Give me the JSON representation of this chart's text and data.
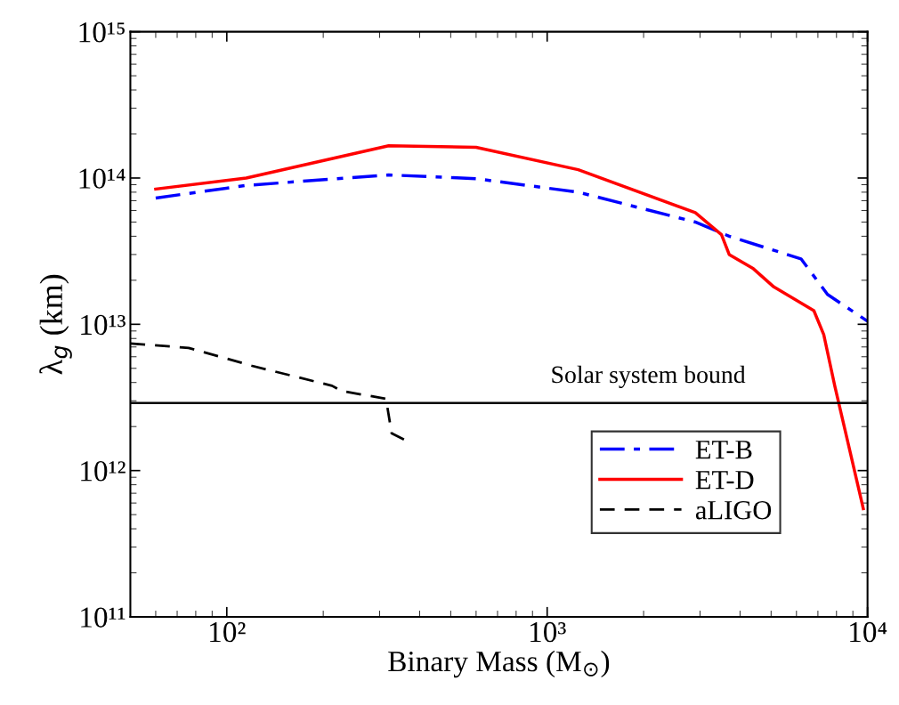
{
  "chart_data": {
    "type": "line",
    "xlabel": "Binary Mass (M$_{⊙}$)",
    "ylabel": "λ$_{g}$ (km)",
    "log": "xy",
    "grid": false,
    "legend": "bottom right",
    "xlim": [
      50,
      10000
    ],
    "xticks": [
      {
        "value": 100,
        "label": "10²"
      },
      {
        "value": 1000,
        "label": "10³"
      },
      {
        "value": 10000,
        "label": "10⁴"
      }
    ],
    "ylim": [
      100000000000.0,
      1000000000000000.0
    ],
    "yticks": [
      {
        "value": 100000000000.0,
        "label": "10¹¹"
      },
      {
        "value": 1000000000000.0,
        "label": "10¹²"
      },
      {
        "value": 10000000000000.0,
        "label": "10¹³"
      },
      {
        "value": 100000000000000.0,
        "label": "10¹⁴"
      },
      {
        "value": 1000000000000000.0,
        "label": "10¹⁵"
      }
    ],
    "series": [
      {
        "name": "ET-B",
        "color": "#0000ff",
        "line_style": "dashdot",
        "x": [
          60,
          115,
          320,
          600,
          1250,
          2900,
          3700,
          6200,
          7500,
          10000
        ],
        "values": [
          73000000000000.0,
          89000000000000.0,
          105000000000000.0,
          99000000000000.0,
          80000000000000.0,
          50000000000000.0,
          40000000000000.0,
          28000000000000.0,
          16000000000000.0,
          10500000000000.0
        ]
      },
      {
        "name": "ET-D",
        "color": "#ff0000",
        "line_style": "solid",
        "x": [
          60,
          115,
          320,
          600,
          1250,
          2900,
          3500,
          3700,
          4400,
          5100,
          6800,
          7300,
          7900,
          9700
        ],
        "values": [
          84000000000000.0,
          100000000000000.0,
          166000000000000.0,
          162000000000000.0,
          114000000000000.0,
          58000000000000.0,
          41000000000000.0,
          30000000000000.0,
          24000000000000.0,
          18000000000000.0,
          12400000000000.0,
          8500000000000.0,
          3800000000000.0,
          550000000000.0
        ]
      },
      {
        "name": "aLIGO",
        "color": "#000000",
        "line_style": "dashed",
        "x": [
          50,
          76,
          120,
          213,
          228,
          314,
          327,
          364
        ],
        "values": [
          7400000000000.0,
          6900000000000.0,
          5200000000000.0,
          3800000000000.0,
          3500000000000.0,
          3100000000000.0,
          1800000000000.0,
          1600000000000.0
        ]
      }
    ],
    "ref_lines": [
      {
        "axis": "y",
        "value": 2900000000000.0,
        "label": "Solar system bound",
        "color": "#000000"
      }
    ]
  }
}
